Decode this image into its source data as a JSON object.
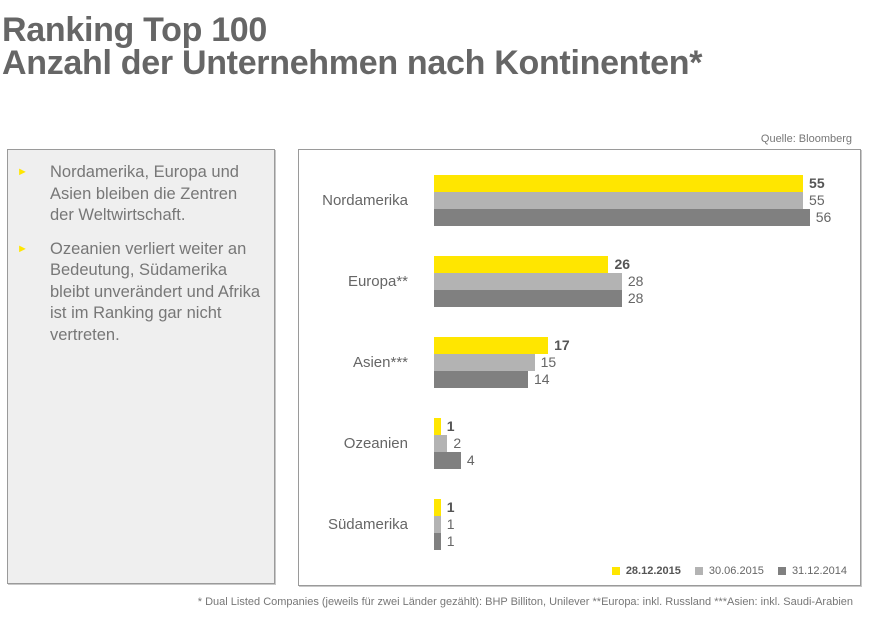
{
  "header": {
    "title_line1": "Ranking Top 100",
    "title_line2": "Anzahl der Unternehmen nach Kontinenten*"
  },
  "source": "Quelle: Bloomberg",
  "bullets": [
    "Nordamerika, Europa und Asien bleiben die Zentren der Weltwirtschaft.",
    "Ozeanien verliert weiter an Bedeutung, Südamerika bleibt unverändert und Afrika ist im Ranking gar nicht vertreten."
  ],
  "bullet_icon": "triangle-right-icon",
  "colors": {
    "accent_yellow": "#ffe600",
    "series_light_gray": "#b3b3b3",
    "series_dark_gray": "#808080",
    "text_gray": "#666666"
  },
  "chart_data": {
    "type": "bar",
    "orientation": "horizontal",
    "title": "Anzahl der Unternehmen nach Kontinenten*",
    "xlabel": "",
    "ylabel": "",
    "categories": [
      "Nordamerika",
      "Europa**",
      "Asien***",
      "Ozeanien",
      "Südamerika"
    ],
    "series": [
      {
        "name": "28.12.2015",
        "values": [
          55,
          26,
          17,
          1,
          1
        ],
        "color": "#ffe600",
        "bold_labels": true
      },
      {
        "name": "30.06.2015",
        "values": [
          55,
          28,
          15,
          2,
          1
        ],
        "color": "#b3b3b3",
        "bold_labels": false
      },
      {
        "name": "31.12.2014",
        "values": [
          56,
          28,
          14,
          4,
          1
        ],
        "color": "#808080",
        "bold_labels": false
      }
    ],
    "xlim": [
      0,
      56
    ],
    "grid": false,
    "axes_visible": false,
    "data_labels": true,
    "legend_position": "bottom-right"
  },
  "footnote": "* Dual Listed Companies (jeweils für zwei Länder gezählt): BHP Billiton, Unilever  **Europa: inkl. Russland   ***Asien: inkl. Saudi-Arabien"
}
